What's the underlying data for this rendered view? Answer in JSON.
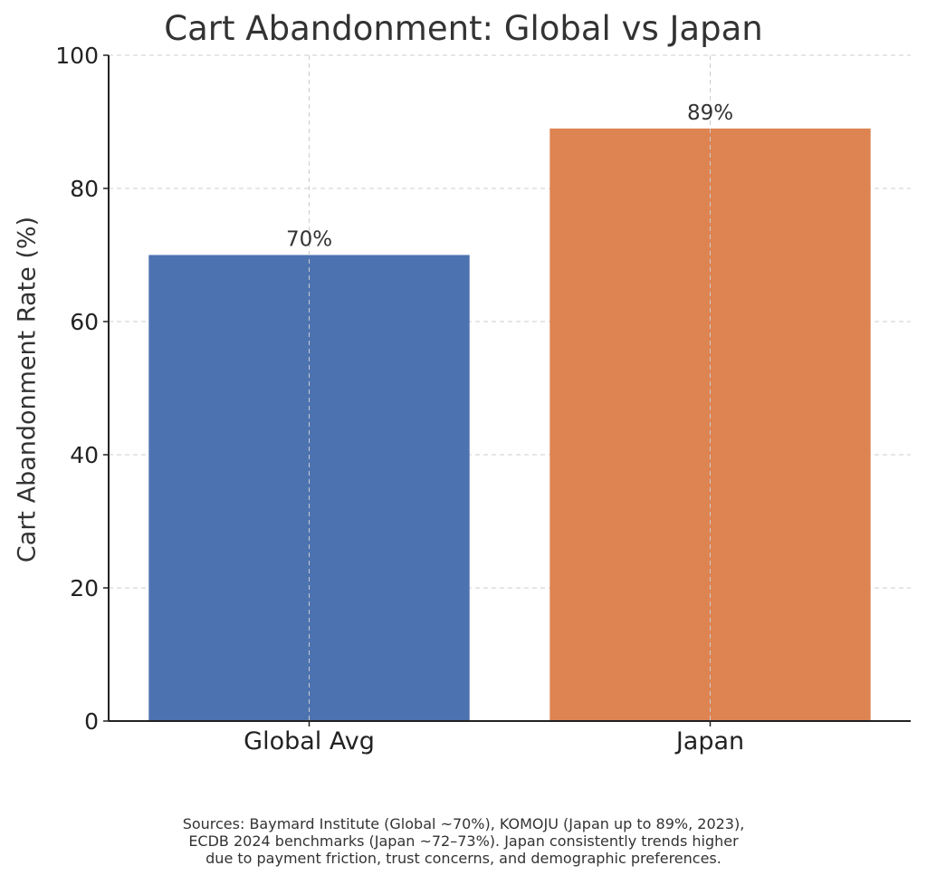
{
  "chart_data": {
    "type": "bar",
    "title": "Cart Abandonment: Global vs Japan",
    "xlabel": "",
    "ylabel": "Cart Abandonment Rate (%)",
    "categories": [
      "Global Avg",
      "Japan"
    ],
    "values": [
      70,
      89
    ],
    "value_labels": [
      "70%",
      "89%"
    ],
    "colors": [
      "#4c72b0",
      "#dd8452"
    ],
    "ylim": [
      0,
      100
    ],
    "yticks": [
      0,
      20,
      40,
      60,
      80,
      100
    ],
    "grid": true,
    "legend": "none"
  },
  "footnote": {
    "lines": [
      "Sources: Baymard Institute (Global ~70%), KOMOJU (Japan up to 89%, 2023),",
      "ECDB 2024 benchmarks (Japan ~72–73%). Japan consistently trends higher",
      "due to payment friction, trust concerns, and demographic preferences."
    ]
  }
}
